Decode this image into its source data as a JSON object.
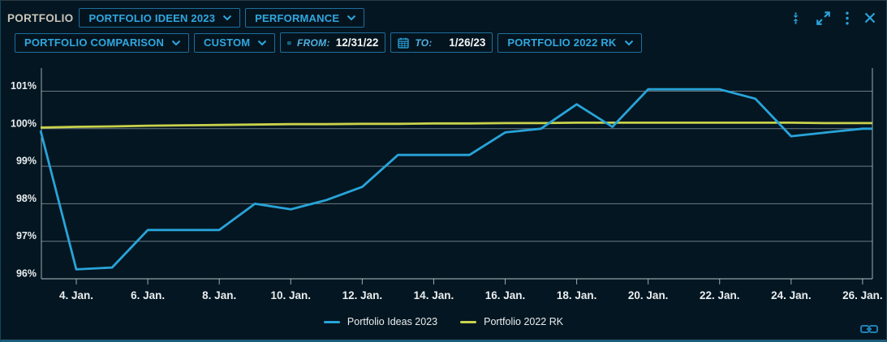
{
  "header": {
    "title": "PORTFOLIO",
    "portfolio_dropdown": "PORTFOLIO IDEEN 2023",
    "view_dropdown": "PERFORMANCE",
    "icons": [
      "collapse-vertical-icon",
      "expand-icon",
      "kebab-menu-icon",
      "close-icon"
    ]
  },
  "toolbar": {
    "comparison_dropdown": "PORTFOLIO COMPARISON",
    "range_dropdown": "CUSTOM",
    "from_label": "FROM:",
    "from_value": "12/31/22",
    "to_label": "TO:",
    "to_value": "1/26/23",
    "benchmark_dropdown": "PORTFOLIO 2022 RK"
  },
  "colors": {
    "accent": "#2fa7e0",
    "border": "#1e6e9e",
    "background": "#041621",
    "series_blue": "#28a4d9",
    "series_yellow": "#c9d24b",
    "grid": "#c3d2d8",
    "axis_text": "#e9eef0"
  },
  "chart_data": {
    "type": "line",
    "title": "",
    "xlabel": "",
    "ylabel": "",
    "grid": true,
    "legend_position": "bottom",
    "ylim": [
      95.7,
      101.6
    ],
    "x_days": [
      3,
      4,
      5,
      6,
      7,
      8,
      9,
      10,
      11,
      12,
      13,
      14,
      15,
      16,
      17,
      18,
      19,
      20,
      21,
      22,
      23,
      24,
      25,
      26
    ],
    "x_ticks": [
      {
        "day": 4,
        "label": "4. Jan."
      },
      {
        "day": 6,
        "label": "6. Jan."
      },
      {
        "day": 8,
        "label": "8. Jan."
      },
      {
        "day": 10,
        "label": "10. Jan."
      },
      {
        "day": 12,
        "label": "12. Jan."
      },
      {
        "day": 14,
        "label": "14. Jan."
      },
      {
        "day": 16,
        "label": "16. Jan."
      },
      {
        "day": 18,
        "label": "18. Jan."
      },
      {
        "day": 20,
        "label": "20. Jan."
      },
      {
        "day": 22,
        "label": "22. Jan."
      },
      {
        "day": 24,
        "label": "24. Jan."
      },
      {
        "day": 26,
        "label": "26. Jan."
      }
    ],
    "y_ticks": [
      {
        "value": 96,
        "label": "96%"
      },
      {
        "value": 97,
        "label": "97%"
      },
      {
        "value": 98,
        "label": "98%"
      },
      {
        "value": 99,
        "label": "99%"
      },
      {
        "value": 100,
        "label": "100%"
      },
      {
        "value": 101,
        "label": "101%"
      }
    ],
    "series": [
      {
        "name": "Portfolio Ideas 2023",
        "color": "#28a4d9",
        "values": [
          99.95,
          96.25,
          96.3,
          97.3,
          97.3,
          97.3,
          98.0,
          97.85,
          98.1,
          98.45,
          99.3,
          99.3,
          99.3,
          99.9,
          100.0,
          100.65,
          100.05,
          101.05,
          101.05,
          101.05,
          100.8,
          99.8,
          99.9,
          100.0
        ]
      },
      {
        "name": "Portfolio 2022 RK",
        "color": "#c9d24b",
        "values": [
          100.03,
          100.05,
          100.06,
          100.08,
          100.09,
          100.1,
          100.11,
          100.12,
          100.12,
          100.13,
          100.13,
          100.14,
          100.14,
          100.15,
          100.15,
          100.16,
          100.16,
          100.16,
          100.16,
          100.16,
          100.16,
          100.16,
          100.15,
          100.15
        ]
      }
    ]
  },
  "footer": {
    "link_icon": "link-chain-icon"
  }
}
